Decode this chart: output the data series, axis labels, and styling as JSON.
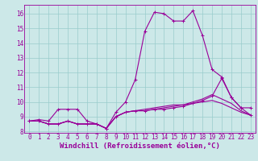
{
  "xlabel": "Windchill (Refroidissement éolien,°C)",
  "x": [
    0,
    1,
    2,
    3,
    4,
    5,
    6,
    7,
    8,
    9,
    10,
    11,
    12,
    13,
    14,
    15,
    16,
    17,
    18,
    19,
    20,
    21,
    22,
    23
  ],
  "line1": [
    8.7,
    8.8,
    8.7,
    9.5,
    9.5,
    9.5,
    8.7,
    8.5,
    8.2,
    9.3,
    10.0,
    11.5,
    14.8,
    16.1,
    16.0,
    15.5,
    15.5,
    16.2,
    14.5,
    12.2,
    11.7,
    10.3,
    9.6,
    9.6
  ],
  "line2": [
    8.7,
    8.7,
    8.5,
    8.5,
    8.7,
    8.5,
    8.5,
    8.5,
    8.2,
    9.0,
    9.3,
    9.4,
    9.4,
    9.5,
    9.5,
    9.6,
    9.7,
    9.9,
    10.1,
    10.4,
    11.6,
    10.3,
    9.6,
    9.1
  ],
  "line3": [
    8.7,
    8.7,
    8.5,
    8.5,
    8.7,
    8.5,
    8.5,
    8.5,
    8.2,
    9.0,
    9.3,
    9.4,
    9.4,
    9.5,
    9.6,
    9.7,
    9.8,
    10.0,
    10.2,
    10.5,
    10.2,
    9.9,
    9.4,
    9.1
  ],
  "line4": [
    8.7,
    8.7,
    8.5,
    8.5,
    8.7,
    8.5,
    8.5,
    8.5,
    8.2,
    9.0,
    9.3,
    9.4,
    9.5,
    9.6,
    9.7,
    9.8,
    9.8,
    9.9,
    10.0,
    10.1,
    9.9,
    9.6,
    9.3,
    9.1
  ],
  "ylim": [
    7.9,
    16.6
  ],
  "xlim": [
    -0.5,
    23.5
  ],
  "yticks": [
    8,
    9,
    10,
    11,
    12,
    13,
    14,
    15,
    16
  ],
  "xticks": [
    0,
    1,
    2,
    3,
    4,
    5,
    6,
    7,
    8,
    9,
    10,
    11,
    12,
    13,
    14,
    15,
    16,
    17,
    18,
    19,
    20,
    21,
    22,
    23
  ],
  "line_color": "#990099",
  "bg_color": "#cce8e8",
  "grid_color": "#99cccc",
  "marker_size": 3,
  "line_width": 0.8,
  "tick_fontsize": 5.5,
  "xlabel_fontsize": 6.5
}
